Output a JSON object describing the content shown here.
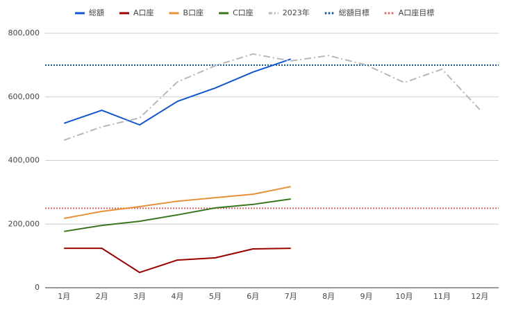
{
  "chart_data": {
    "type": "line",
    "categories": [
      "1月",
      "2月",
      "3月",
      "4月",
      "5月",
      "6月",
      "7月",
      "8月",
      "9月",
      "10月",
      "11月",
      "12月"
    ],
    "series": [
      {
        "name": "総額",
        "color": "#1155cc",
        "values": [
          517000,
          558000,
          512000,
          586000,
          628000,
          678000,
          719000,
          null,
          null,
          null,
          null,
          null
        ]
      },
      {
        "name": "A口座",
        "color": "#990000",
        "values": [
          124000,
          124000,
          48000,
          87000,
          94000,
          122000,
          124000,
          null,
          null,
          null,
          null,
          null
        ]
      },
      {
        "name": "B口座",
        "color": "#e69138",
        "values": [
          218000,
          240000,
          255000,
          272000,
          283000,
          294000,
          318000,
          null,
          null,
          null,
          null,
          null
        ]
      },
      {
        "name": "C口座",
        "color": "#38761d",
        "values": [
          177000,
          196000,
          209000,
          229000,
          251000,
          262000,
          279000,
          null,
          null,
          null,
          null,
          null
        ]
      },
      {
        "name": "2023年",
        "color": "#b7b7b7",
        "dash": "dash-dot",
        "values": [
          464000,
          506000,
          534000,
          647000,
          698000,
          735000,
          713000,
          730000,
          700000,
          645000,
          687000,
          560000
        ]
      }
    ],
    "reference_lines": [
      {
        "name": "総額目標",
        "color": "#0b5394",
        "value": 700000
      },
      {
        "name": "A口座目標",
        "color": "#e06666",
        "value": 250000
      }
    ],
    "ylim": [
      0,
      800000
    ],
    "yticks": [
      0,
      {
        "value": 200000,
        "label": "200,000"
      },
      {
        "value": 400000,
        "label": "400,000"
      },
      {
        "value": 600000,
        "label": "600,000"
      },
      {
        "value": 800000,
        "label": "800,000"
      }
    ],
    "grid": true,
    "legend": "top"
  }
}
